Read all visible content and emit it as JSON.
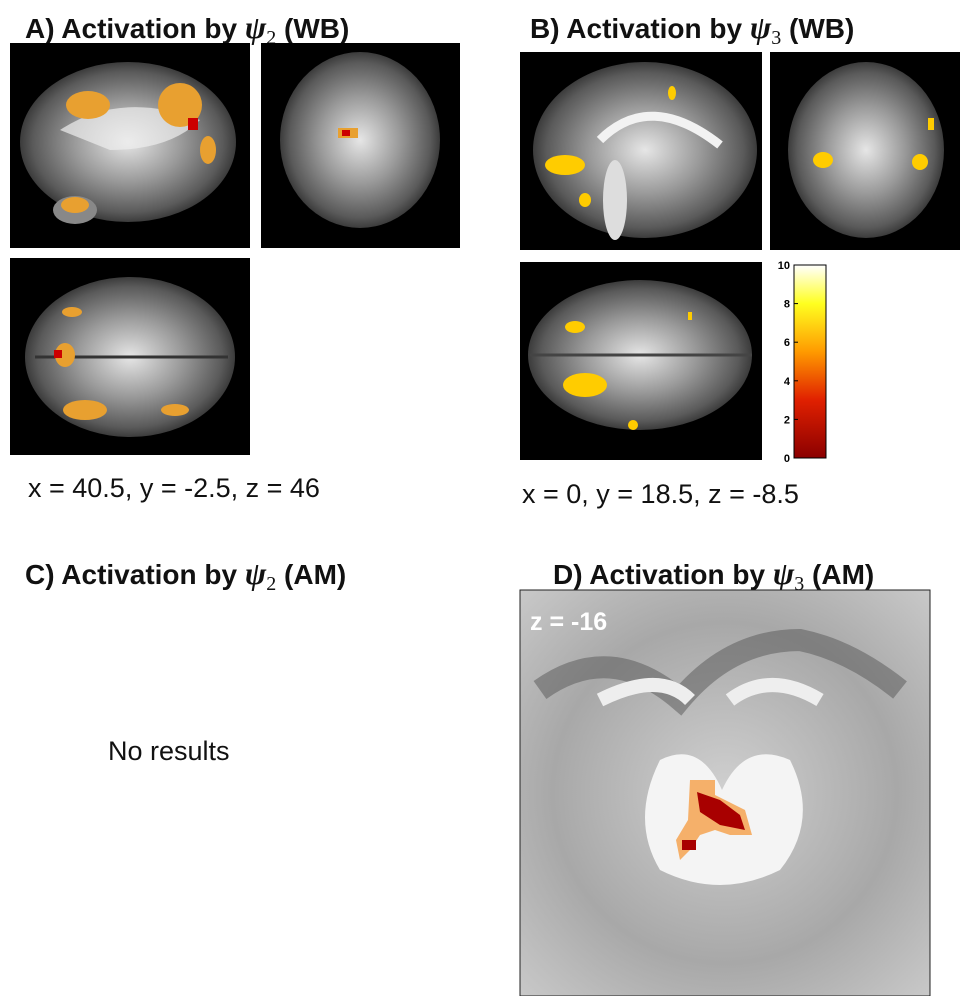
{
  "panels": [
    {
      "title": {
        "prefix": "A) Activation by ",
        "symbol": "ψ",
        "subscript": "2",
        "suffix": " (WB)"
      },
      "coordinates": "x = 40.5, y = -2.5, z = 46"
    },
    {
      "title": {
        "prefix": "B) Activation by ",
        "symbol": "ψ",
        "subscript": "3",
        "suffix": " (WB)"
      },
      "coordinates": "x = 0, y = 18.5, z = -8.5",
      "colorbar": {
        "lim": [
          0,
          10
        ],
        "ticks": [
          0,
          2,
          4,
          6,
          8,
          10
        ]
      }
    },
    {
      "title": {
        "prefix": "C) Activation by ",
        "symbol": "ψ",
        "subscript": "2",
        "suffix": " (AM)"
      },
      "message": "No results"
    },
    {
      "title": {
        "prefix": "D) Activation by ",
        "symbol": "ψ",
        "subscript": "3",
        "suffix": " (AM)"
      },
      "slice_label": "z = -16"
    }
  ]
}
